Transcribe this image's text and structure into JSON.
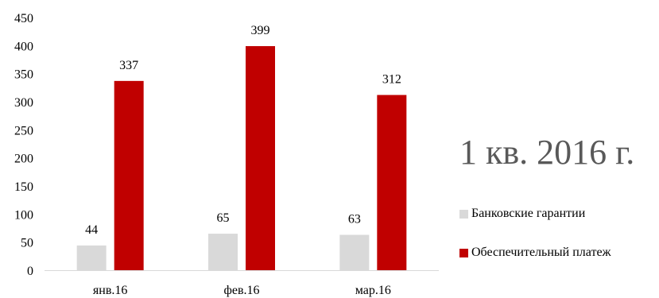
{
  "chart_data": {
    "type": "bar",
    "title": "1 кв. 2016 г.",
    "categories": [
      "янв.16",
      "фев.16",
      "мар.16"
    ],
    "series": [
      {
        "name": "Банковские гарантии",
        "values": [
          44,
          65,
          63
        ],
        "color": "#d9d9d9"
      },
      {
        "name": "Обеспечительный платеж",
        "values": [
          337,
          399,
          312
        ],
        "color": "#c00000"
      }
    ],
    "ylim": [
      0,
      450
    ],
    "yticks": [
      0,
      50,
      100,
      150,
      200,
      250,
      300,
      350,
      400,
      450
    ],
    "grid": false,
    "legend_position": "right",
    "data_labels": true
  }
}
